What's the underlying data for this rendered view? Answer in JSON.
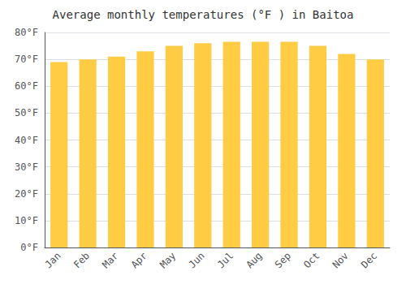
{
  "chart_data": {
    "type": "bar",
    "title": "Average monthly temperatures (°F ) in Baitoa",
    "categories": [
      "Jan",
      "Feb",
      "Mar",
      "Apr",
      "May",
      "Jun",
      "Jul",
      "Aug",
      "Sep",
      "Oct",
      "Nov",
      "Dec"
    ],
    "values": [
      69.0,
      70.0,
      71.0,
      73.0,
      75.0,
      76.0,
      76.5,
      76.5,
      76.5,
      75.0,
      72.0,
      70.0
    ],
    "color": "#FFCC44",
    "ylim": [
      0,
      80
    ],
    "yticks": [
      {
        "value": 0,
        "label": "0°F"
      },
      {
        "value": 10,
        "label": "10°F"
      },
      {
        "value": 20,
        "label": "20°F"
      },
      {
        "value": 30,
        "label": "30°F"
      },
      {
        "value": 40,
        "label": "40°F"
      },
      {
        "value": 50,
        "label": "50°F"
      },
      {
        "value": 60,
        "label": "60°F"
      },
      {
        "value": 70,
        "label": "70°F"
      },
      {
        "value": 80,
        "label": "80°F"
      }
    ],
    "grid": true
  }
}
